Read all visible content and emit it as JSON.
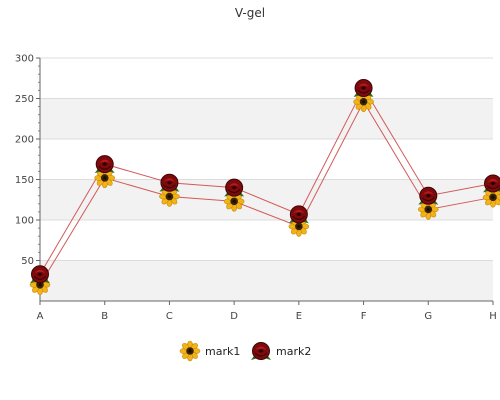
{
  "chart_data": {
    "type": "line",
    "title": "V-gel",
    "xlabel": "",
    "ylabel": "",
    "categories": [
      "A",
      "B",
      "C",
      "D",
      "E",
      "F",
      "G",
      "H"
    ],
    "ylim": [
      0,
      300
    ],
    "yticks": [
      50,
      100,
      150,
      200,
      250,
      300
    ],
    "grid": true,
    "legend_position": "bottom",
    "series": [
      {
        "name": "mark1",
        "values": [
          20,
          152,
          129,
          123,
          92,
          246,
          113,
          128
        ],
        "marker": "sunflower-icon",
        "color": "#e6a800"
      },
      {
        "name": "mark2",
        "values": [
          33,
          169,
          146,
          140,
          107,
          263,
          130,
          145
        ],
        "marker": "rose-icon",
        "color": "#9b0f12"
      }
    ],
    "line_color": "#d35a5a"
  }
}
